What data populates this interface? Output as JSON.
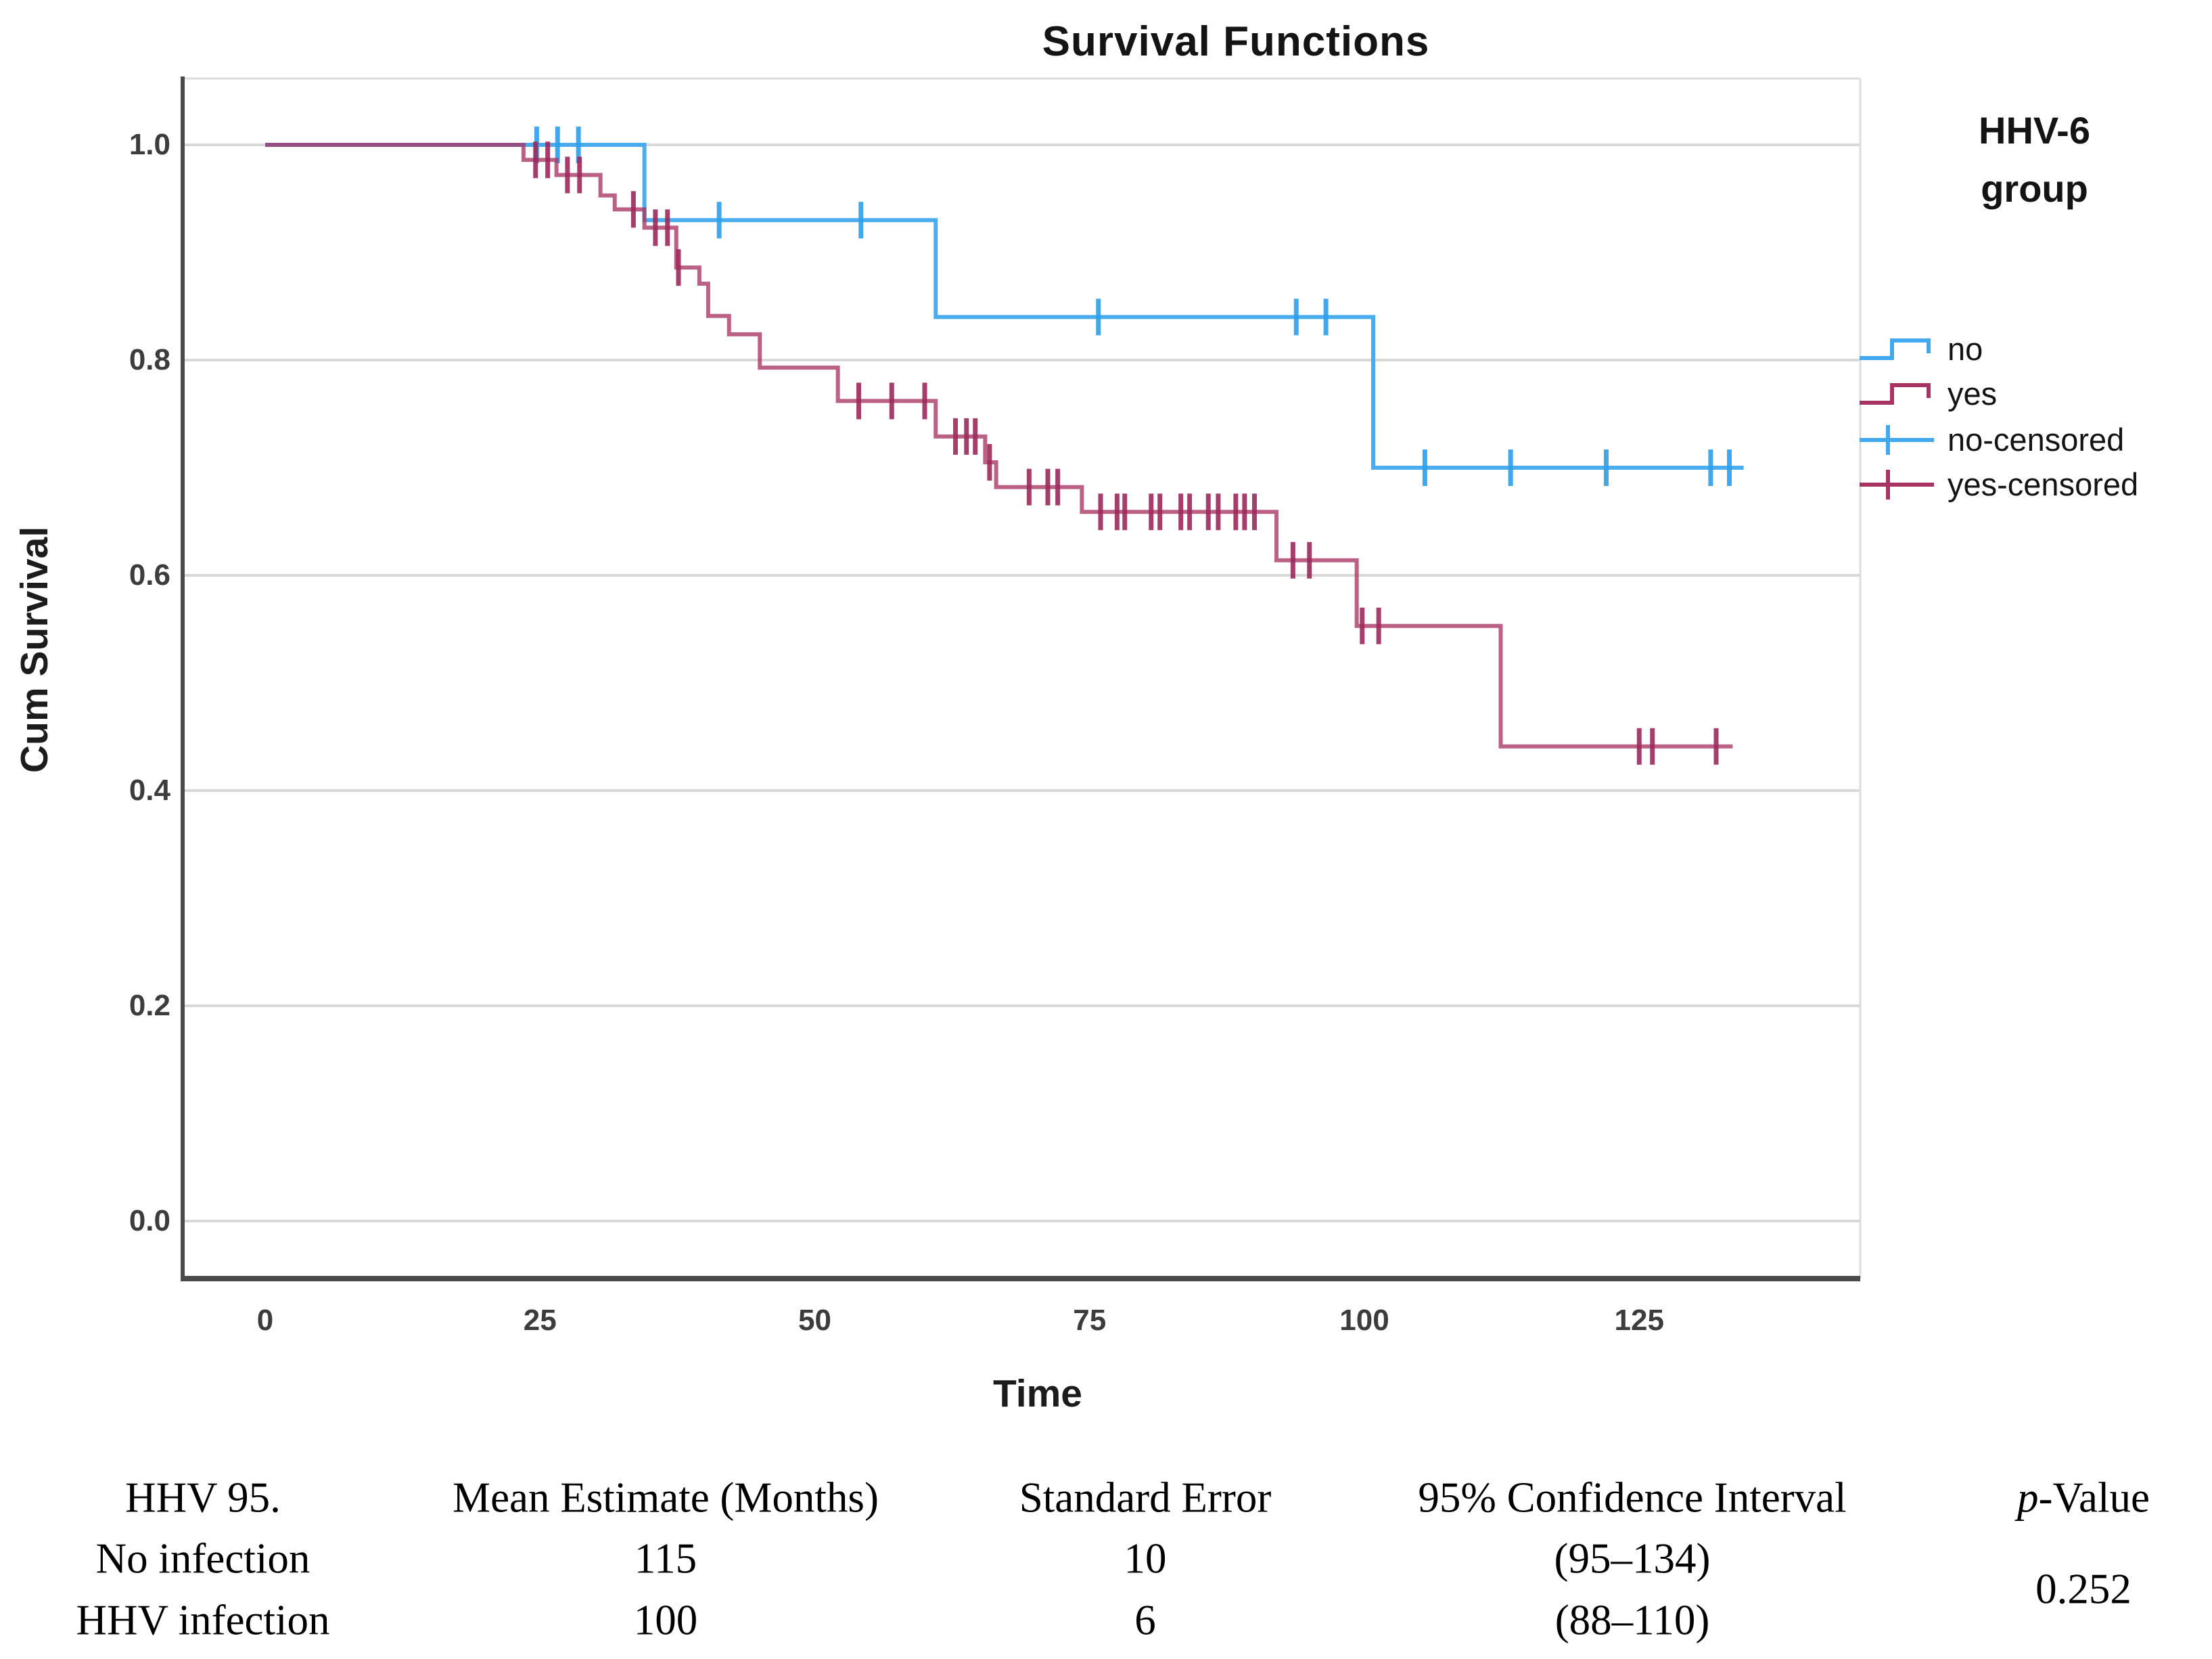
{
  "chart": {
    "title": "Survival Functions",
    "xlabel": "Time",
    "ylabel": "Cum Survival",
    "legend": {
      "title_line1": "HHV-6",
      "title_line2": "group",
      "entries": [
        {
          "label": "no",
          "glyph": "step-line",
          "series": "no"
        },
        {
          "label": "yes",
          "glyph": "step-line",
          "series": "yes"
        },
        {
          "label": "no-censored",
          "glyph": "plus",
          "series": "no"
        },
        {
          "label": "yes-censored",
          "glyph": "plus",
          "series": "yes"
        }
      ]
    }
  },
  "chart_data": {
    "type": "line",
    "subtype": "kaplan-meier-step",
    "title": "Survival Functions",
    "xlabel": "Time",
    "ylabel": "Cum Survival",
    "xlim": [
      -7.5,
      146
    ],
    "ylim": [
      -0.053,
      1.06
    ],
    "xticks": [
      0,
      25,
      50,
      75,
      100,
      125
    ],
    "xtick_labels": [
      "0",
      "25",
      "50",
      "75",
      "100",
      "125"
    ],
    "yticks": [
      0.0,
      0.2,
      0.4,
      0.6,
      0.8,
      1.0
    ],
    "ytick_labels": [
      "0.0",
      "0.2",
      "0.4",
      "0.6",
      "0.8",
      "1.0"
    ],
    "grid": "horizontal",
    "grid_color": "#d8d8d8",
    "axis_color": "#4a4a4a",
    "legend_position": "right",
    "series": [
      {
        "name": "no",
        "color": "#41a9ec",
        "censor_color": "#2d9fe9",
        "opacity": 0.95,
        "start": [
          0,
          1.0
        ],
        "steps": [
          [
            34.5,
            0.93
          ],
          [
            61.0,
            0.84
          ],
          [
            100.8,
            0.7
          ]
        ],
        "end_x": 134.5,
        "censored": [
          [
            24.7,
            1.0
          ],
          [
            26.6,
            1.0
          ],
          [
            28.5,
            1.0
          ],
          [
            41.3,
            0.93
          ],
          [
            54.2,
            0.93
          ],
          [
            75.8,
            0.84
          ],
          [
            93.8,
            0.84
          ],
          [
            96.5,
            0.84
          ],
          [
            105.5,
            0.7
          ],
          [
            113.3,
            0.7
          ],
          [
            122.0,
            0.7
          ],
          [
            131.5,
            0.7
          ],
          [
            133.2,
            0.7
          ]
        ]
      },
      {
        "name": "yes",
        "color": "#a73463",
        "censor_color": "#9c2a5b",
        "opacity": 0.78,
        "start": [
          0,
          1.0
        ],
        "steps": [
          [
            23.5,
            0.986
          ],
          [
            26.5,
            0.972
          ],
          [
            30.5,
            0.953
          ],
          [
            31.8,
            0.94
          ],
          [
            34.5,
            0.923
          ],
          [
            37.4,
            0.886
          ],
          [
            39.5,
            0.871
          ],
          [
            40.3,
            0.841
          ],
          [
            42.2,
            0.824
          ],
          [
            45.0,
            0.793
          ],
          [
            52.1,
            0.762
          ],
          [
            61.0,
            0.729
          ],
          [
            65.5,
            0.705
          ],
          [
            66.5,
            0.682
          ],
          [
            74.3,
            0.659
          ],
          [
            92.0,
            0.614
          ],
          [
            99.3,
            0.553
          ],
          [
            112.4,
            0.441
          ]
        ],
        "end_x": 133.5,
        "censored": [
          [
            24.6,
            0.986
          ],
          [
            25.7,
            0.986
          ],
          [
            27.5,
            0.972
          ],
          [
            28.6,
            0.972
          ],
          [
            33.5,
            0.94
          ],
          [
            35.5,
            0.923
          ],
          [
            36.6,
            0.923
          ],
          [
            37.6,
            0.886
          ],
          [
            54.0,
            0.762
          ],
          [
            57.0,
            0.762
          ],
          [
            60.0,
            0.762
          ],
          [
            62.8,
            0.729
          ],
          [
            63.8,
            0.729
          ],
          [
            64.6,
            0.729
          ],
          [
            65.9,
            0.705
          ],
          [
            69.5,
            0.682
          ],
          [
            71.2,
            0.682
          ],
          [
            72.1,
            0.682
          ],
          [
            76.0,
            0.659
          ],
          [
            77.5,
            0.659
          ],
          [
            78.2,
            0.659
          ],
          [
            80.6,
            0.659
          ],
          [
            81.4,
            0.659
          ],
          [
            83.3,
            0.659
          ],
          [
            84.1,
            0.659
          ],
          [
            85.8,
            0.659
          ],
          [
            86.7,
            0.659
          ],
          [
            88.3,
            0.659
          ],
          [
            89.1,
            0.659
          ],
          [
            90.0,
            0.659
          ],
          [
            93.5,
            0.614
          ],
          [
            95.0,
            0.614
          ],
          [
            99.8,
            0.553
          ],
          [
            101.3,
            0.553
          ],
          [
            125.0,
            0.441
          ],
          [
            126.2,
            0.441
          ],
          [
            132.0,
            0.441
          ]
        ]
      }
    ]
  },
  "table": {
    "headers": [
      "HHV 95.",
      "Mean Estimate (Months)",
      "Standard Error",
      "95% Confidence Interval"
    ],
    "p_header_italic": "p",
    "p_header_rest": "-Value",
    "rows": [
      {
        "label": "No infection",
        "mean": "115",
        "se": "10",
        "ci": "(95–134)"
      },
      {
        "label": "HHV infection",
        "mean": "100",
        "se": "6",
        "ci": "(88–110)"
      }
    ],
    "p_value": "0.252"
  }
}
